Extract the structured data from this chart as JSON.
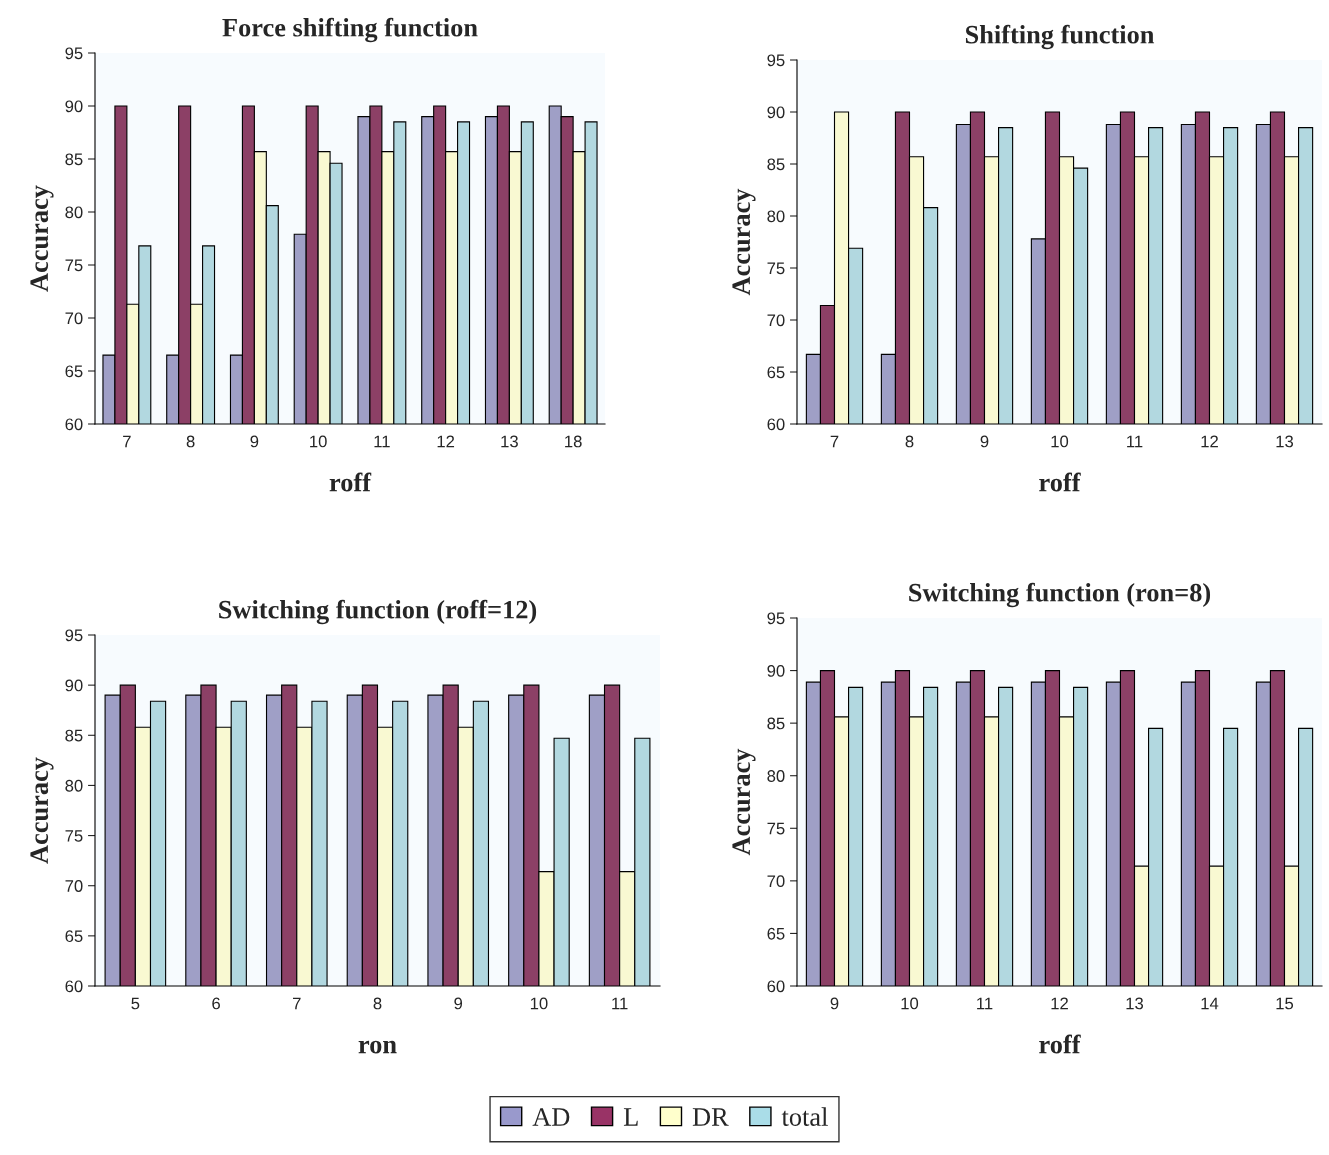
{
  "chart_data": [
    {
      "type": "bar",
      "title": "Force shifting function",
      "xlabel": "roff",
      "ylabel": "Accuracy",
      "categories": [
        "7",
        "8",
        "9",
        "10",
        "11",
        "12",
        "13",
        "18"
      ],
      "ylim": [
        60,
        95
      ],
      "yticks": [
        60,
        65,
        70,
        75,
        80,
        85,
        90,
        95
      ],
      "legend": "bottom",
      "series": [
        {
          "name": "AD",
          "color": "#9999cc",
          "values": [
            66.5,
            66.5,
            66.5,
            77.9,
            89,
            89,
            89,
            90
          ]
        },
        {
          "name": "L",
          "color": "#993366",
          "values": [
            90,
            90,
            90,
            90,
            90,
            90,
            90,
            89
          ]
        },
        {
          "name": "DR",
          "color": "#ffffcc",
          "values": [
            71.3,
            71.3,
            85.7,
            85.7,
            85.7,
            85.7,
            85.7,
            85.7
          ]
        },
        {
          "name": "total",
          "color": "#aadde8",
          "values": [
            76.8,
            76.8,
            80.6,
            84.6,
            88.5,
            88.5,
            88.5,
            88.5
          ]
        }
      ]
    },
    {
      "type": "bar",
      "title": "Shifting function",
      "xlabel": "roff",
      "ylabel": "Accuracy",
      "categories": [
        "7",
        "8",
        "9",
        "10",
        "11",
        "12",
        "13"
      ],
      "ylim": [
        60,
        95
      ],
      "yticks": [
        60,
        65,
        70,
        75,
        80,
        85,
        90,
        95
      ],
      "series": [
        {
          "color": "#9999cc",
          "values": [
            66.7,
            66.7,
            88.8,
            77.8,
            88.8,
            88.8,
            88.8
          ]
        },
        {
          "color": "#993366",
          "values": [
            71.4,
            90,
            90,
            90,
            90,
            90,
            90
          ]
        },
        {
          "color": "#ffffcc",
          "values": [
            90,
            85.7,
            85.7,
            85.7,
            85.7,
            85.7,
            85.7
          ]
        },
        {
          "color": "#aadde8",
          "values": [
            76.9,
            80.8,
            88.5,
            84.6,
            88.5,
            88.5,
            88.5
          ]
        }
      ]
    },
    {
      "type": "bar",
      "title": "Switching function (roff=12)",
      "xlabel": "ron",
      "ylabel": "Accuracy",
      "categories": [
        "5",
        "6",
        "7",
        "8",
        "9",
        "10",
        "11"
      ],
      "ylim": [
        60,
        95
      ],
      "yticks": [
        60,
        65,
        70,
        75,
        80,
        85,
        90,
        95
      ],
      "series": [
        {
          "color": "#9999cc",
          "values": [
            89,
            89,
            89,
            89,
            89,
            89,
            89
          ]
        },
        {
          "color": "#993366",
          "values": [
            90,
            90,
            90,
            90,
            90,
            90,
            90
          ]
        },
        {
          "color": "#ffffcc",
          "values": [
            85.8,
            85.8,
            85.8,
            85.8,
            85.8,
            71.4,
            71.4
          ]
        },
        {
          "color": "#aadde8",
          "values": [
            88.4,
            88.4,
            88.4,
            88.4,
            88.4,
            84.7,
            84.7
          ]
        }
      ]
    },
    {
      "type": "bar",
      "title": "Switching function (ron=8)",
      "xlabel": "roff",
      "ylabel": "Accuracy",
      "categories": [
        "9",
        "10",
        "11",
        "12",
        "13",
        "14",
        "15"
      ],
      "ylim": [
        60,
        95
      ],
      "yticks": [
        60,
        65,
        70,
        75,
        80,
        85,
        90,
        95
      ],
      "series": [
        {
          "color": "#9999cc",
          "values": [
            88.9,
            88.9,
            88.9,
            88.9,
            88.9,
            88.9,
            88.9
          ]
        },
        {
          "color": "#993366",
          "values": [
            90,
            90,
            90,
            90,
            90,
            90,
            90
          ]
        },
        {
          "color": "#ffffcc",
          "values": [
            85.6,
            85.6,
            85.6,
            85.6,
            71.4,
            71.4,
            71.4
          ]
        },
        {
          "color": "#aadde8",
          "values": [
            88.4,
            88.4,
            88.4,
            88.4,
            84.5,
            84.5,
            84.5
          ]
        }
      ]
    }
  ]
}
